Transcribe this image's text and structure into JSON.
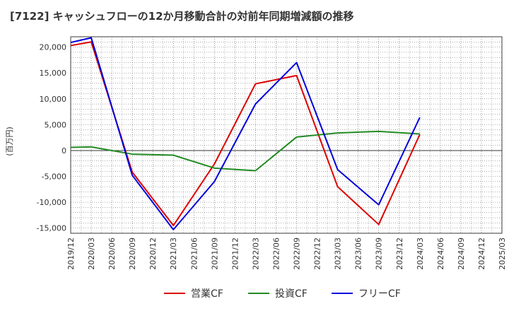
{
  "chart_data": {
    "type": "line",
    "title": "[7122]  キャッシュフローの12か月移動合計の対前年同期増減額の推移",
    "ylabel": "(百万円)",
    "xlabel": "",
    "ylim": [
      -16000,
      22000
    ],
    "y_ticks": [
      20000,
      15000,
      10000,
      5000,
      0,
      -5000,
      -10000,
      -15000
    ],
    "y_tick_labels": [
      "20,000",
      "15,000",
      "10,000",
      "5,000",
      "0",
      "-5,000",
      "-10,000",
      "-15,000"
    ],
    "categories": [
      "2019/12",
      "2020/03",
      "2020/06",
      "2020/09",
      "2020/12",
      "2021/03",
      "2021/06",
      "2021/09",
      "2021/12",
      "2022/03",
      "2022/06",
      "2022/09",
      "2022/12",
      "2023/03",
      "2023/06",
      "2023/09",
      "2023/12",
      "2024/03",
      "2024/06",
      "2024/09",
      "2024/12",
      "2025/03"
    ],
    "grid": true,
    "legend_position": "bottom",
    "series": [
      {
        "name": "営業CF",
        "color": "#dd0000",
        "points": [
          [
            "2019/12",
            20300
          ],
          [
            "2020/03",
            21000
          ],
          [
            "2020/09",
            -4200
          ],
          [
            "2021/03",
            -14500
          ],
          [
            "2021/09",
            -2600
          ],
          [
            "2022/03",
            12900
          ],
          [
            "2022/09",
            14500
          ],
          [
            "2023/03",
            -7000
          ],
          [
            "2023/09",
            -14300
          ],
          [
            "2024/03",
            3100
          ]
        ]
      },
      {
        "name": "投資CF",
        "color": "#228b22",
        "points": [
          [
            "2019/12",
            600
          ],
          [
            "2020/03",
            700
          ],
          [
            "2020/09",
            -700
          ],
          [
            "2021/03",
            -900
          ],
          [
            "2021/09",
            -3400
          ],
          [
            "2022/03",
            -3900
          ],
          [
            "2022/09",
            2600
          ],
          [
            "2023/03",
            3400
          ],
          [
            "2023/09",
            3700
          ],
          [
            "2024/03",
            3200
          ]
        ]
      },
      {
        "name": "フリーCF",
        "color": "#0000dd",
        "points": [
          [
            "2019/12",
            20900
          ],
          [
            "2020/03",
            21800
          ],
          [
            "2020/09",
            -4800
          ],
          [
            "2021/03",
            -15300
          ],
          [
            "2021/09",
            -6000
          ],
          [
            "2022/03",
            9000
          ],
          [
            "2022/09",
            17000
          ],
          [
            "2023/03",
            -3700
          ],
          [
            "2023/09",
            -10500
          ],
          [
            "2024/03",
            6400
          ]
        ]
      }
    ]
  }
}
